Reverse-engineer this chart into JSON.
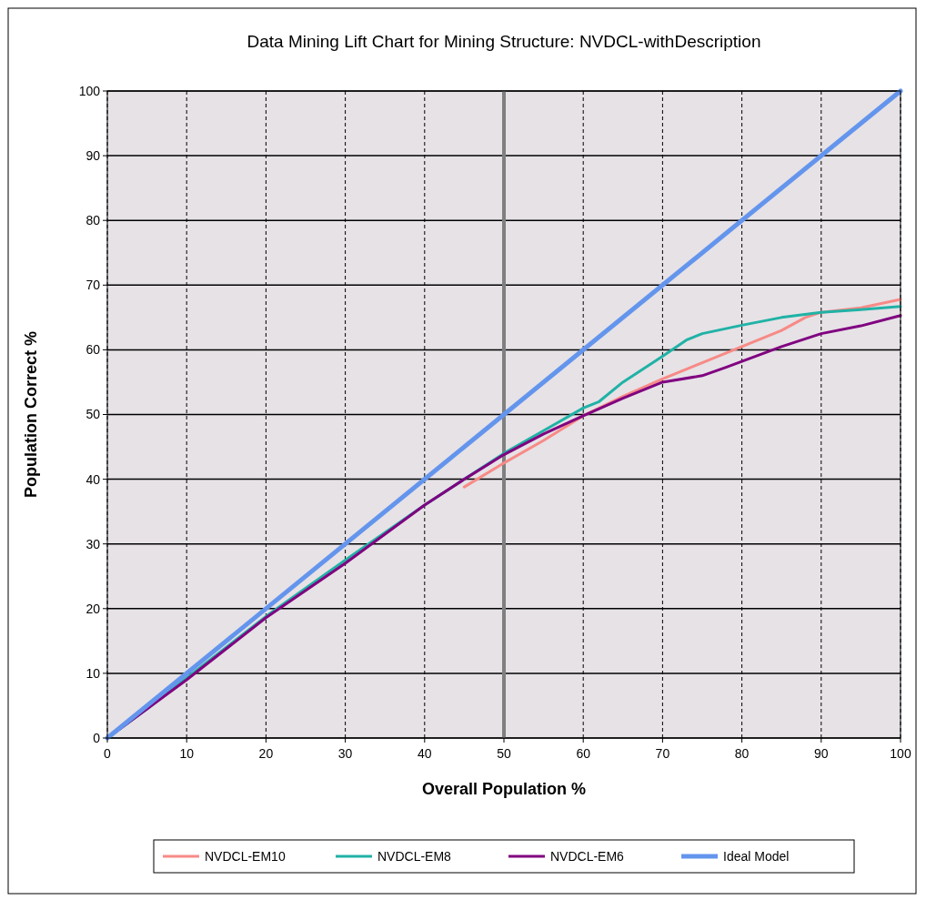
{
  "chart_data": {
    "type": "line",
    "title": "Data Mining Lift Chart for Mining Structure: NVDCL-withDescription",
    "xlabel": "Overall Population %",
    "ylabel": "Population Correct %",
    "xlim": [
      0,
      100
    ],
    "xticks": [
      0,
      10,
      20,
      30,
      40,
      50,
      60,
      70,
      80,
      90,
      100
    ],
    "ylim": [
      0,
      100
    ],
    "yticks": [
      0,
      10,
      20,
      30,
      40,
      50,
      60,
      70,
      80,
      90,
      100
    ],
    "grid": true,
    "legend": "bottom",
    "ref_lines": [
      {
        "axis": "x",
        "value": 50,
        "color": "#808080"
      }
    ],
    "series": [
      {
        "name": "NVDCL-EM10",
        "color": "#f78a86",
        "x": [
          45,
          50,
          55,
          60,
          65,
          70,
          75,
          80,
          85,
          88,
          90,
          95,
          100
        ],
        "values": [
          38.8,
          42.5,
          46,
          49.8,
          52.8,
          55.5,
          58,
          60.5,
          63,
          65,
          65.8,
          66.5,
          67.8
        ]
      },
      {
        "name": "NVDCL-EM8",
        "color": "#20b2a6",
        "x": [
          0,
          5,
          10,
          20,
          30,
          40,
          45,
          50,
          55,
          60,
          62,
          65,
          70,
          73,
          75,
          80,
          85,
          90,
          95,
          100
        ],
        "values": [
          0,
          4.5,
          9.3,
          18.8,
          27.5,
          36,
          40,
          44,
          47.5,
          51,
          52,
          55,
          59,
          61.5,
          62.5,
          63.8,
          65,
          65.8,
          66.2,
          66.7
        ]
      },
      {
        "name": "NVDCL-EM6",
        "color": "#800080",
        "x": [
          0,
          5,
          10,
          20,
          30,
          40,
          45,
          50,
          55,
          60,
          65,
          70,
          75,
          78,
          80,
          85,
          90,
          95,
          100
        ],
        "values": [
          0,
          4.5,
          9,
          18.6,
          27,
          36,
          40,
          43.8,
          47,
          49.8,
          52.5,
          55,
          56,
          57.3,
          58.2,
          60.5,
          62.5,
          63.7,
          65.3
        ]
      },
      {
        "name": "Ideal Model",
        "color": "#6495ed",
        "x": [
          0,
          100
        ],
        "values": [
          0,
          100
        ]
      }
    ]
  }
}
